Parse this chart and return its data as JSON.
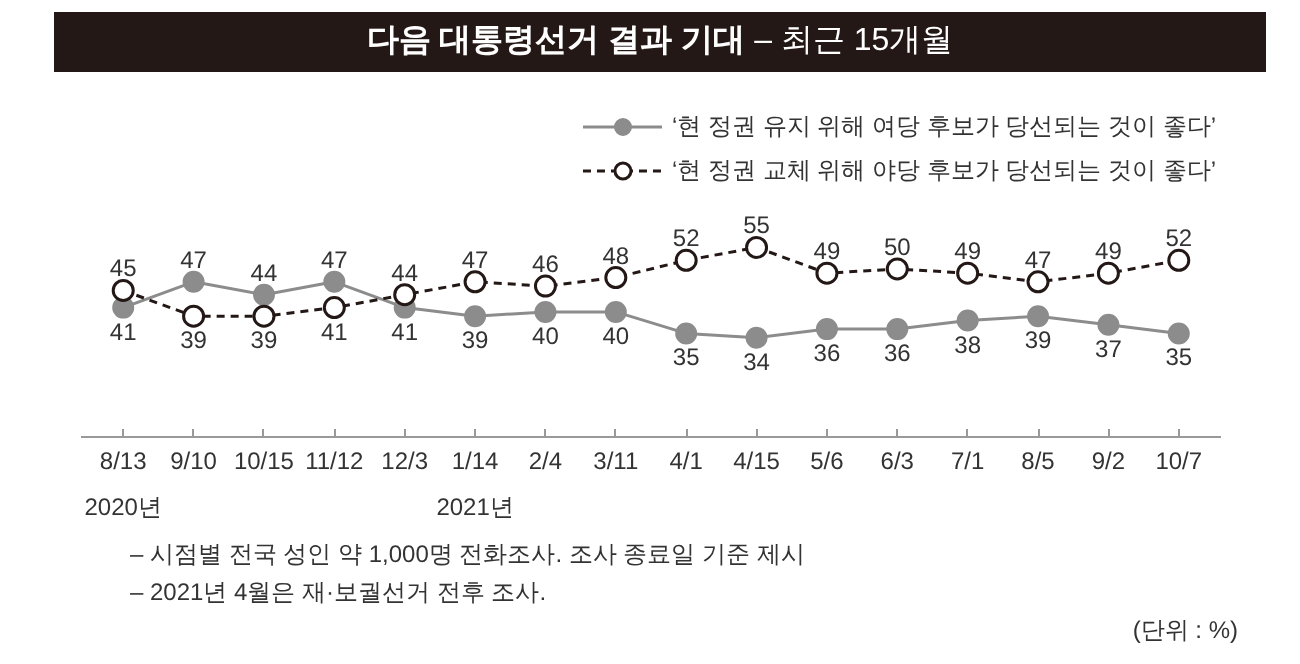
{
  "chart_data": {
    "type": "line",
    "title": "다음 대통령선거 결과 기대",
    "subtitle": "– 최근 15개월",
    "categories": [
      "8/13",
      "9/10",
      "10/15",
      "11/12",
      "12/3",
      "1/14",
      "2/4",
      "3/11",
      "4/1",
      "4/15",
      "5/6",
      "6/3",
      "7/1",
      "8/5",
      "9/2",
      "10/7"
    ],
    "series": [
      {
        "name": "‘현 정권 유지 위해 여당 후보가 당선되는 것이 좋다’",
        "color": "#8c8c8c",
        "marker": "circle",
        "line_style": "solid",
        "values": [
          41,
          47,
          44,
          47,
          41,
          39,
          40,
          40,
          35,
          34,
          36,
          36,
          38,
          39,
          37,
          35
        ]
      },
      {
        "name": "‘현 정권 교체 위해 야당 후보가 당선되는 것이 좋다’",
        "color": "#231815",
        "marker": "open_circle",
        "line_style": "dashed",
        "values": [
          45,
          39,
          39,
          41,
          44,
          47,
          46,
          48,
          52,
          55,
          49,
          50,
          49,
          47,
          49,
          52
        ]
      }
    ],
    "data_labels": true,
    "legend": "top right",
    "grid": false,
    "tick_labels": "x",
    "annotations": [
      "2020년",
      "2021년",
      "– 시점별 전국 성인 약 1,000명 전화조사. 조사 종료일 기준 제시",
      "– 2021년 4월은 재·보궐선거 전후 조사.",
      "(단위 : %)"
    ]
  }
}
